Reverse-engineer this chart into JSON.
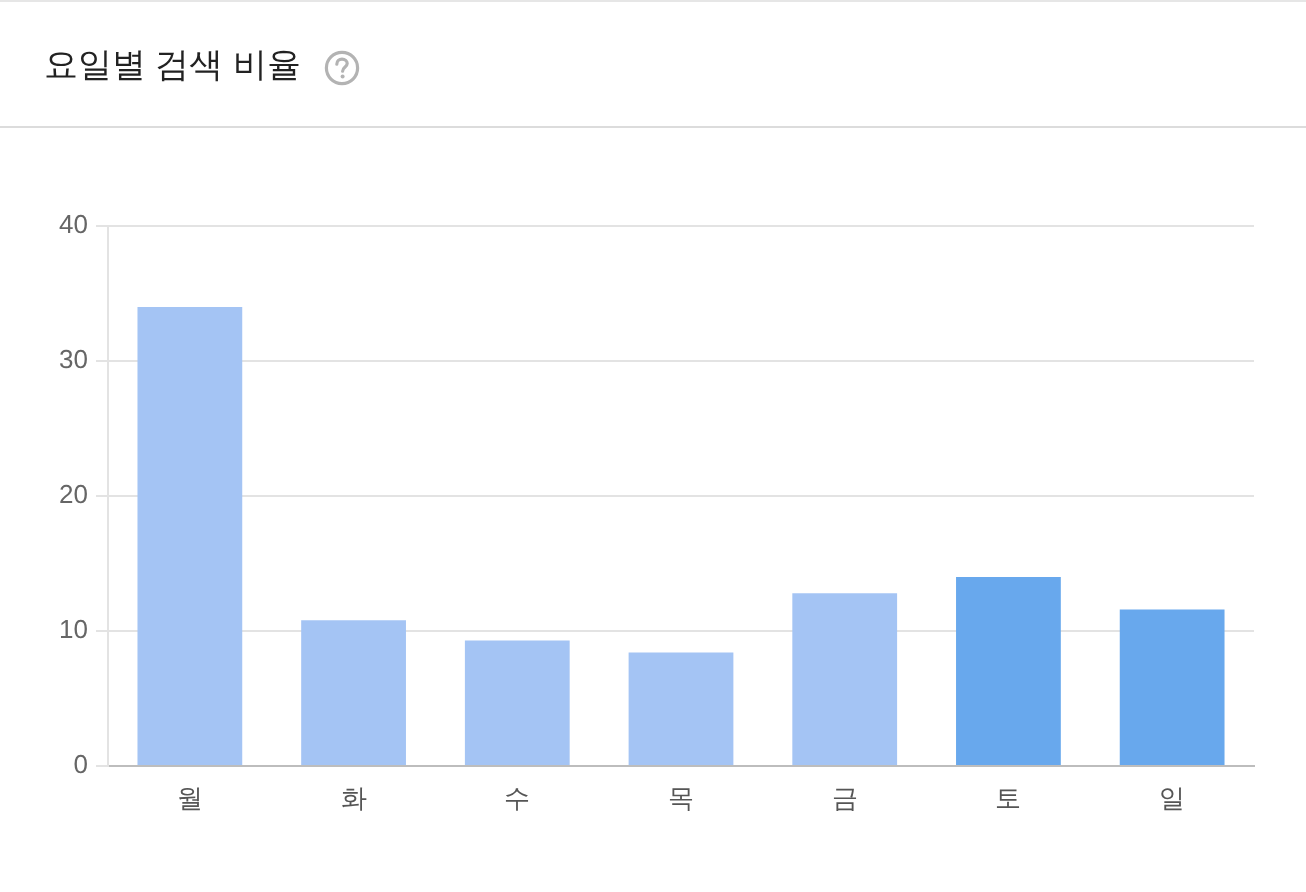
{
  "chart_data": {
    "type": "bar",
    "title": "요일별 검색 비율",
    "categories": [
      "월",
      "화",
      "수",
      "목",
      "금",
      "토",
      "일"
    ],
    "values": [
      34.0,
      10.8,
      9.3,
      8.4,
      12.8,
      14.0,
      11.6
    ],
    "colors": [
      "#a4c4f4",
      "#a4c4f4",
      "#a4c4f4",
      "#a4c4f4",
      "#a4c4f4",
      "#68a8ed",
      "#68a8ed"
    ],
    "ylim": [
      0,
      40
    ],
    "yticks": [
      0,
      10,
      20,
      30,
      40
    ],
    "grid": "y"
  }
}
